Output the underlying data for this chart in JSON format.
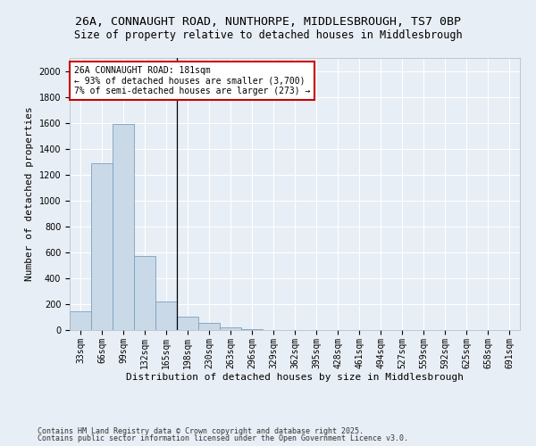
{
  "title_line1": "26A, CONNAUGHT ROAD, NUNTHORPE, MIDDLESBROUGH, TS7 0BP",
  "title_line2": "Size of property relative to detached houses in Middlesbrough",
  "xlabel": "Distribution of detached houses by size in Middlesbrough",
  "ylabel": "Number of detached properties",
  "categories": [
    "33sqm",
    "66sqm",
    "99sqm",
    "132sqm",
    "165sqm",
    "198sqm",
    "230sqm",
    "263sqm",
    "296sqm",
    "329sqm",
    "362sqm",
    "395sqm",
    "428sqm",
    "461sqm",
    "494sqm",
    "527sqm",
    "559sqm",
    "592sqm",
    "625sqm",
    "658sqm",
    "691sqm"
  ],
  "values": [
    145,
    1290,
    1590,
    570,
    220,
    105,
    55,
    22,
    10,
    0,
    0,
    0,
    0,
    0,
    0,
    0,
    0,
    0,
    0,
    0,
    0
  ],
  "bar_color": "#c9d9e8",
  "bar_edge_color": "#7aa0bc",
  "annotation_text": "26A CONNAUGHT ROAD: 181sqm\n← 93% of detached houses are smaller (3,700)\n7% of semi-detached houses are larger (273) →",
  "annotation_box_facecolor": "#ffffff",
  "annotation_box_edgecolor": "#cc0000",
  "ylim": [
    0,
    2100
  ],
  "yticks": [
    0,
    200,
    400,
    600,
    800,
    1000,
    1200,
    1400,
    1600,
    1800,
    2000
  ],
  "footer_line1": "Contains HM Land Registry data © Crown copyright and database right 2025.",
  "footer_line2": "Contains public sector information licensed under the Open Government Licence v3.0.",
  "bg_color": "#e8eef5",
  "plot_bg_color": "#e8eef5",
  "grid_color": "#ffffff",
  "title1_fontsize": 9.5,
  "title2_fontsize": 8.5,
  "axis_label_fontsize": 8,
  "tick_fontsize": 7,
  "annotation_fontsize": 7,
  "footer_fontsize": 6
}
